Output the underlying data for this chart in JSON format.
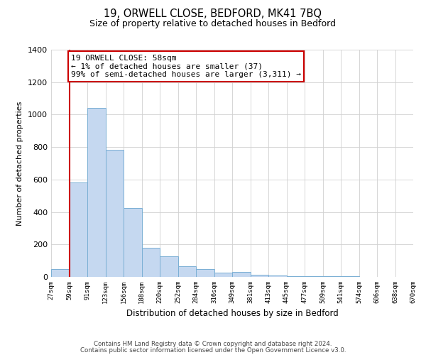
{
  "title_line1": "19, ORWELL CLOSE, BEDFORD, MK41 7BQ",
  "title_line2": "Size of property relative to detached houses in Bedford",
  "xlabel": "Distribution of detached houses by size in Bedford",
  "ylabel": "Number of detached properties",
  "bar_values": [
    50,
    580,
    1040,
    785,
    425,
    178,
    125,
    65,
    50,
    25,
    30,
    15,
    10,
    5,
    5,
    5,
    3,
    2,
    1,
    1
  ],
  "bin_labels": [
    "27sqm",
    "59sqm",
    "91sqm",
    "123sqm",
    "156sqm",
    "188sqm",
    "220sqm",
    "252sqm",
    "284sqm",
    "316sqm",
    "349sqm",
    "381sqm",
    "413sqm",
    "445sqm",
    "477sqm",
    "509sqm",
    "541sqm",
    "574sqm",
    "606sqm",
    "638sqm",
    "670sqm"
  ],
  "bar_color": "#c5d8f0",
  "bar_edge_color": "#7aafd4",
  "ylim": [
    0,
    1400
  ],
  "yticks": [
    0,
    200,
    400,
    600,
    800,
    1000,
    1200,
    1400
  ],
  "red_line_x": 1,
  "annotation_line1": "19 ORWELL CLOSE: 58sqm",
  "annotation_line2": "← 1% of detached houses are smaller (37)",
  "annotation_line3": "99% of semi-detached houses are larger (3,311) →",
  "annotation_box_color": "#ffffff",
  "annotation_border_color": "#cc0000",
  "footer_line1": "Contains HM Land Registry data © Crown copyright and database right 2024.",
  "footer_line2": "Contains public sector information licensed under the Open Government Licence v3.0.",
  "background_color": "#ffffff",
  "grid_color": "#d0d0d0"
}
